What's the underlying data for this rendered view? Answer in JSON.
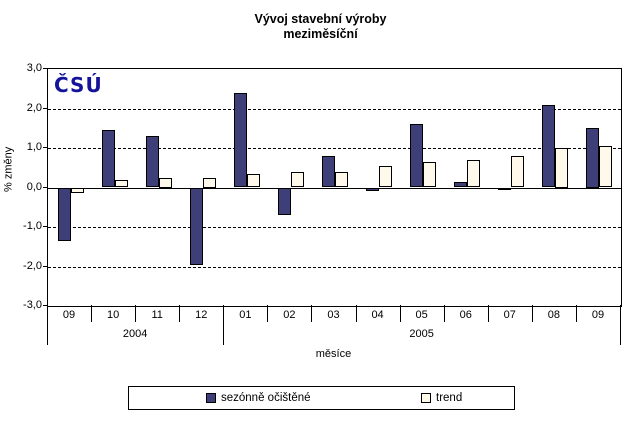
{
  "title": {
    "line1": "Vývoj stavební výroby",
    "line2": "meziměsíční"
  },
  "logo_text": "ČSÚ",
  "colors": {
    "seasonal_fill": "#3E3E78",
    "trend_fill": "#FFF9EC",
    "logo_blue": "#14149B",
    "axis_black": "#000000"
  },
  "axes": {
    "y_label": "% změny",
    "x_label": "měsíce",
    "y_tick_labels": [
      "3,0",
      "2,0",
      "1,0",
      "0,0",
      "-1,0",
      "-2,0",
      "-3,0"
    ],
    "y_tick_values": [
      3,
      2,
      1,
      0,
      -1,
      -2,
      -3
    ]
  },
  "chart_data": {
    "type": "bar",
    "title": "Vývoj stavební výroby meziměsíční",
    "xlabel": "měsíce",
    "ylabel": "% změny",
    "ylim": [
      -3.0,
      3.0
    ],
    "grid": true,
    "legend_position": "bottom",
    "categories": [
      "09",
      "10",
      "11",
      "12",
      "01",
      "02",
      "03",
      "04",
      "05",
      "06",
      "07",
      "08",
      "09"
    ],
    "year_groups": [
      {
        "label": "2004",
        "span": 4
      },
      {
        "label": "2005",
        "span": 9
      }
    ],
    "series": [
      {
        "name": "sezónně očištěné",
        "color": "#3E3E78",
        "values": [
          -1.35,
          1.45,
          1.3,
          -1.95,
          2.4,
          -0.7,
          0.8,
          -0.1,
          1.6,
          0.15,
          -0.05,
          2.1,
          1.5
        ]
      },
      {
        "name": "trend",
        "color": "#FFF9EC",
        "values": [
          -0.15,
          0.2,
          0.25,
          0.25,
          0.35,
          0.4,
          0.4,
          0.55,
          0.65,
          0.7,
          0.8,
          1.0,
          1.05
        ]
      }
    ]
  }
}
